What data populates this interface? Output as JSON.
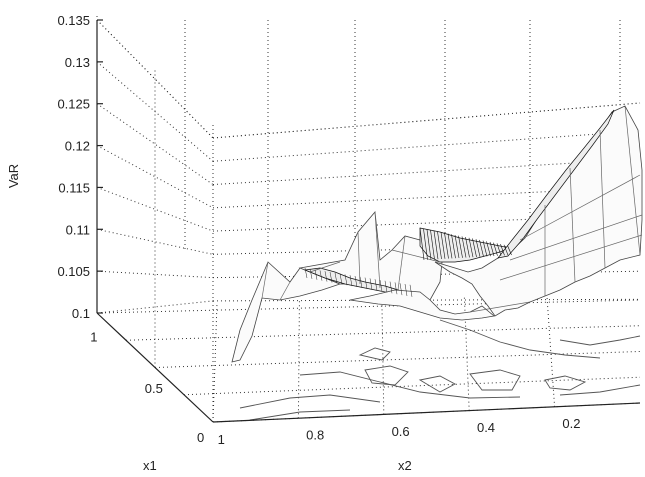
{
  "chart_data": {
    "type": "surface",
    "zlabel": "VaR",
    "xlabel": "x1",
    "ylabel": "x2",
    "z_ticks": [
      "0.1",
      "0.105",
      "0.11",
      "0.115",
      "0.12",
      "0.125",
      "0.13",
      "0.135"
    ],
    "x1_ticks": [
      "0",
      "0.5",
      "1"
    ],
    "x2_ticks": [
      "1",
      "0.8",
      "0.6",
      "0.4",
      "0.2"
    ],
    "zlim": [
      0.1,
      0.135
    ],
    "x1_range": [
      0,
      1
    ],
    "x2_range": [
      0,
      1
    ],
    "grid": true,
    "contour_projection": true
  }
}
